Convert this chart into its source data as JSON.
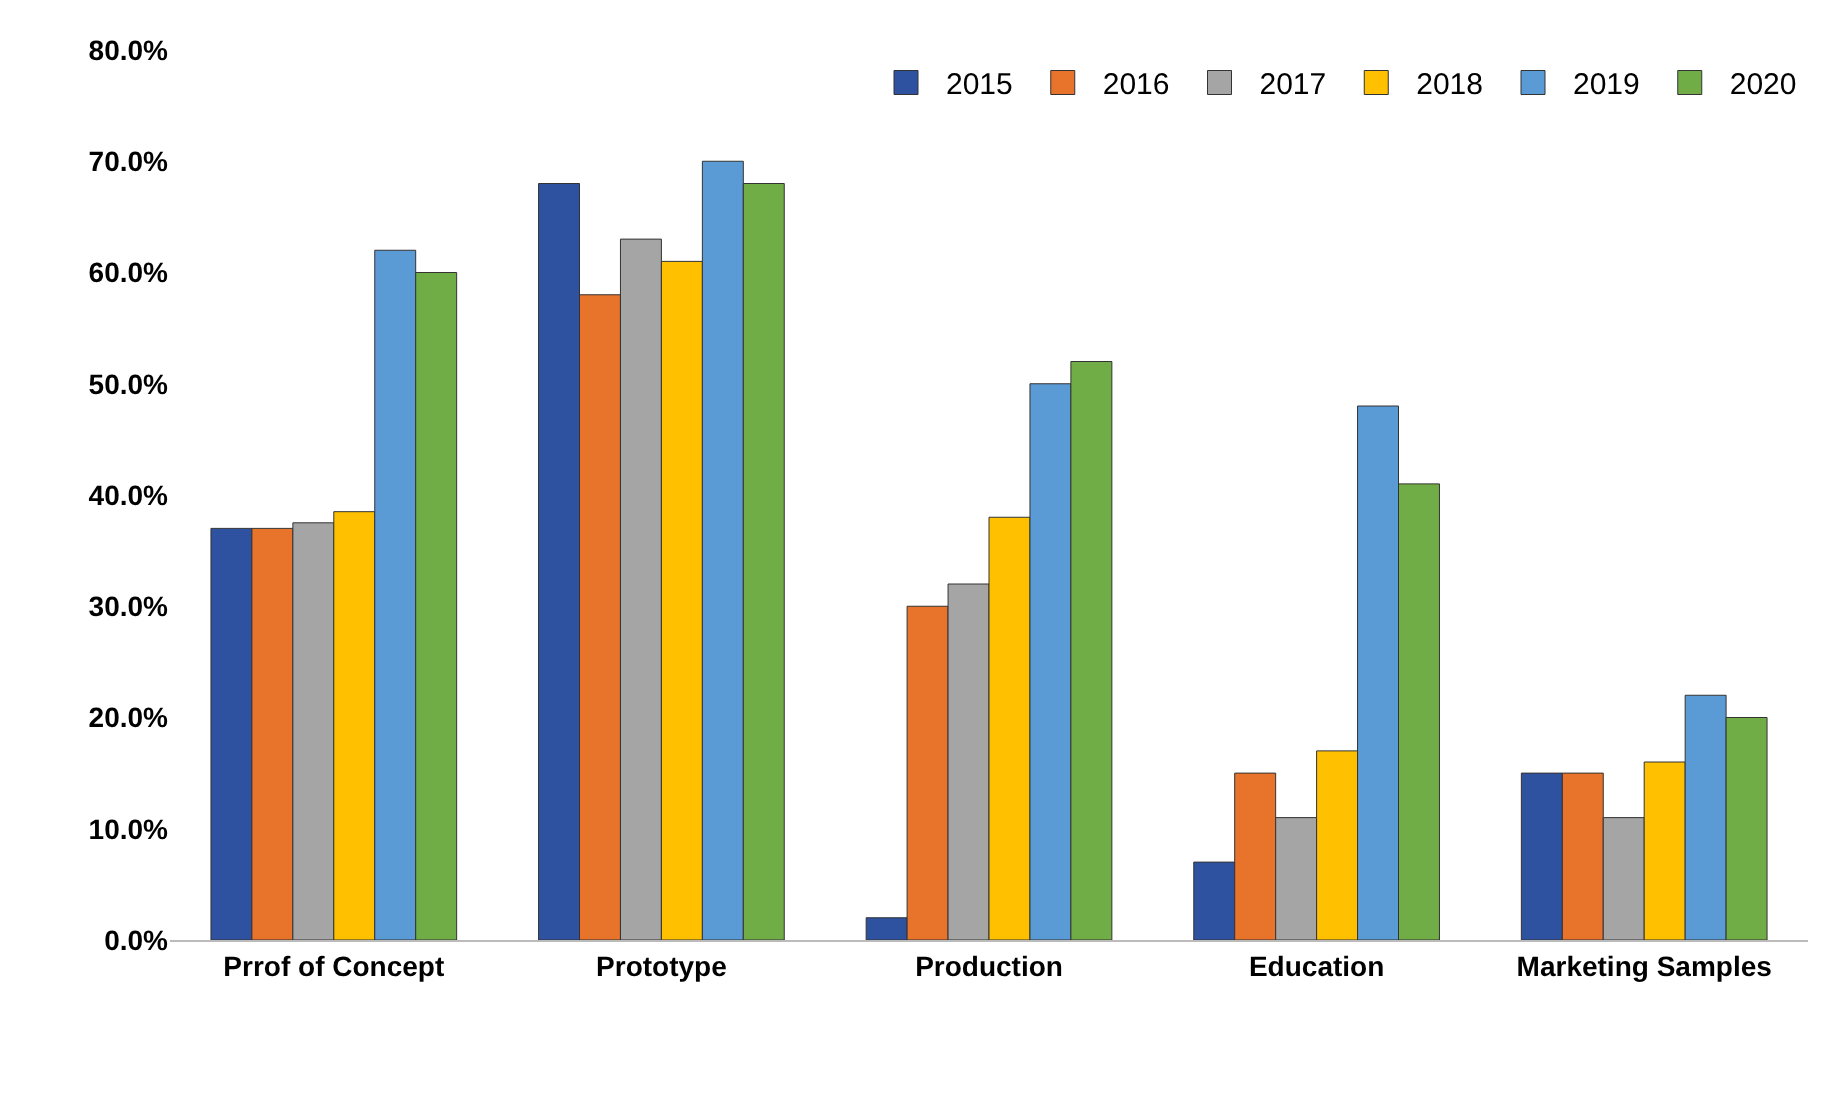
{
  "chart_data": {
    "type": "bar",
    "categories": [
      "Prrof of Concept",
      "Prototype",
      "Production",
      "Education",
      "Marketing Samples"
    ],
    "series": [
      {
        "name": "2015",
        "color": "#2f52a0",
        "values": [
          37,
          68,
          2,
          7,
          15
        ]
      },
      {
        "name": "2016",
        "color": "#e8732a",
        "values": [
          37,
          58,
          30,
          15,
          15
        ]
      },
      {
        "name": "2017",
        "color": "#a5a5a5",
        "values": [
          37.5,
          63,
          32,
          11,
          11
        ]
      },
      {
        "name": "2018",
        "color": "#ffc000",
        "values": [
          38.5,
          61,
          38,
          17,
          16
        ]
      },
      {
        "name": "2019",
        "color": "#5b9bd5",
        "values": [
          62,
          70,
          50,
          48,
          22
        ]
      },
      {
        "name": "2020",
        "color": "#70ad47",
        "values": [
          60,
          68,
          52,
          41,
          20
        ]
      }
    ],
    "ylim": [
      0,
      80
    ],
    "yticks": [
      {
        "value": 0,
        "label": "0.0%"
      },
      {
        "value": 10,
        "label": "10.0%"
      },
      {
        "value": 20,
        "label": "20.0%"
      },
      {
        "value": 30,
        "label": "30.0%"
      },
      {
        "value": 40,
        "label": "40.0%"
      },
      {
        "value": 50,
        "label": "50.0%"
      },
      {
        "value": 60,
        "label": "60.0%"
      },
      {
        "value": 70,
        "label": "70.0%"
      },
      {
        "value": 80,
        "label": "80.0%"
      }
    ],
    "grid": false,
    "legend": "top right"
  }
}
